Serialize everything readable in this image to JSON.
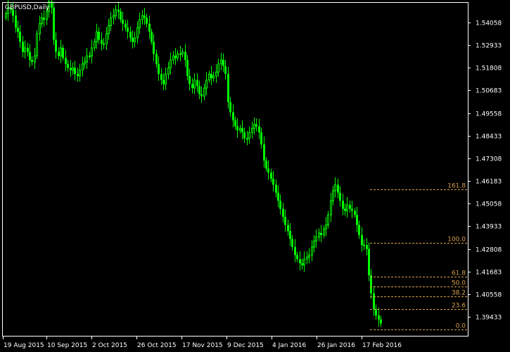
{
  "chart_data": {
    "type": "candlestick",
    "title": "GBPUSD,Daily",
    "xlabel": "",
    "ylabel": "",
    "ylim": [
      1.387,
      1.553
    ],
    "grid": false,
    "colors": {
      "background": "#000000",
      "candle": "#00ff00",
      "frame": "#ffffff",
      "fibonacci": "#d7a04a",
      "text": "#ffffff"
    },
    "x_ticks": [
      "19 Aug 2015",
      "10 Sep 2015",
      "2 Oct 2015",
      "26 Oct 2015",
      "17 Nov 2015",
      "9 Dec 2015",
      "4 Jan 2016",
      "26 Jan 2016",
      "17 Feb 2016"
    ],
    "y_ticks": [
      "1.54058",
      "1.52933",
      "1.51808",
      "1.50683",
      "1.49558",
      "1.48433",
      "1.47308",
      "1.46183",
      "1.45058",
      "1.43933",
      "1.42808",
      "1.41683",
      "1.40558",
      "1.39433"
    ],
    "fibonacci": {
      "high": 1.431,
      "low": 1.388,
      "levels": [
        {
          "label": "161.8",
          "value": 1.4576
        },
        {
          "label": "100.0",
          "value": 1.431
        },
        {
          "label": "61.8",
          "value": 1.4144
        },
        {
          "label": "50.0",
          "value": 1.4095
        },
        {
          "label": "38.2",
          "value": 1.4044
        },
        {
          "label": "23.6",
          "value": 1.3981
        },
        {
          "label": "0.0",
          "value": 1.388
        }
      ]
    },
    "series": [
      {
        "values": [
          1.545,
          1.548,
          1.547,
          1.544,
          1.538,
          1.536,
          1.531,
          1.526,
          1.528,
          1.526,
          1.522,
          1.521,
          1.524,
          1.535,
          1.54,
          1.543,
          1.542,
          1.546,
          1.551,
          1.548,
          1.532,
          1.526,
          1.524,
          1.528,
          1.523,
          1.52,
          1.518,
          1.517,
          1.518,
          1.515,
          1.514,
          1.517,
          1.52,
          1.521,
          1.524,
          1.524,
          1.528,
          1.531,
          1.536,
          1.532,
          1.53,
          1.53,
          1.535,
          1.539,
          1.543,
          1.544,
          1.547,
          1.546,
          1.542,
          1.54,
          1.538,
          1.536,
          1.533,
          1.531,
          1.533,
          1.538,
          1.542,
          1.544,
          1.543,
          1.54,
          1.536,
          1.531,
          1.525,
          1.52,
          1.515,
          1.512,
          1.51,
          1.515,
          1.518,
          1.522,
          1.524,
          1.523,
          1.525,
          1.525,
          1.526,
          1.522,
          1.514,
          1.51,
          1.508,
          1.512,
          1.509,
          1.505,
          1.504,
          1.508,
          1.512,
          1.515,
          1.513,
          1.514,
          1.516,
          1.52,
          1.522,
          1.519,
          1.515,
          1.501,
          1.496,
          1.492,
          1.489,
          1.487,
          1.488,
          1.486,
          1.483,
          1.483,
          1.486,
          1.488,
          1.49,
          1.489,
          1.486,
          1.48,
          1.472,
          1.468,
          1.466,
          1.463,
          1.46,
          1.456,
          1.452,
          1.448,
          1.444,
          1.44,
          1.437,
          1.433,
          1.429,
          1.425,
          1.423,
          1.421,
          1.42,
          1.423,
          1.424,
          1.425,
          1.429,
          1.432,
          1.434,
          1.436,
          1.435,
          1.438,
          1.44,
          1.445,
          1.452,
          1.457,
          1.46,
          1.456,
          1.452,
          1.448,
          1.447,
          1.45,
          1.448,
          1.447,
          1.445,
          1.44,
          1.435,
          1.43,
          1.43,
          1.428,
          1.415,
          1.406,
          1.398,
          1.395,
          1.393,
          1.391
        ]
      }
    ]
  }
}
